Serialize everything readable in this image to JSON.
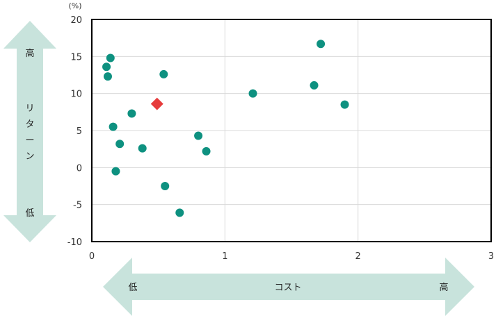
{
  "chart_data": {
    "type": "scatter",
    "y_unit": "(%)",
    "xlim": [
      0,
      3
    ],
    "ylim": [
      -10,
      20
    ],
    "x_ticks": [
      "0",
      "1",
      "2",
      "3"
    ],
    "y_ticks": [
      "20",
      "15",
      "10",
      "5",
      "0",
      "-5",
      "-10"
    ],
    "grid": true,
    "series": [
      {
        "color": "#0e9180",
        "marker": "circle",
        "points": [
          {
            "x": 0.14,
            "y": 14.8
          },
          {
            "x": 0.11,
            "y": 13.6
          },
          {
            "x": 0.12,
            "y": 12.3
          },
          {
            "x": 0.54,
            "y": 12.6
          },
          {
            "x": 0.3,
            "y": 7.3
          },
          {
            "x": 0.16,
            "y": 5.5
          },
          {
            "x": 0.21,
            "y": 3.2
          },
          {
            "x": 0.38,
            "y": 2.6
          },
          {
            "x": 0.18,
            "y": -0.5
          },
          {
            "x": 0.55,
            "y": -2.5
          },
          {
            "x": 0.66,
            "y": -6.1
          },
          {
            "x": 0.8,
            "y": 4.3
          },
          {
            "x": 0.86,
            "y": 2.2
          },
          {
            "x": 1.21,
            "y": 10.0
          },
          {
            "x": 1.67,
            "y": 11.1
          },
          {
            "x": 1.72,
            "y": 16.7
          },
          {
            "x": 1.9,
            "y": 8.5
          }
        ]
      },
      {
        "color": "#e63c3c",
        "marker": "diamond",
        "points": [
          {
            "x": 0.49,
            "y": 8.6
          }
        ]
      }
    ]
  },
  "annotations": {
    "y_arrow": {
      "top": "高",
      "middle": [
        "リ",
        "タ",
        "ー",
        "ン"
      ],
      "bottom": "低",
      "color": "#c8e3dc"
    },
    "x_arrow": {
      "left": "低",
      "middle": "コスト",
      "right": "高",
      "color": "#c8e3dc"
    }
  }
}
